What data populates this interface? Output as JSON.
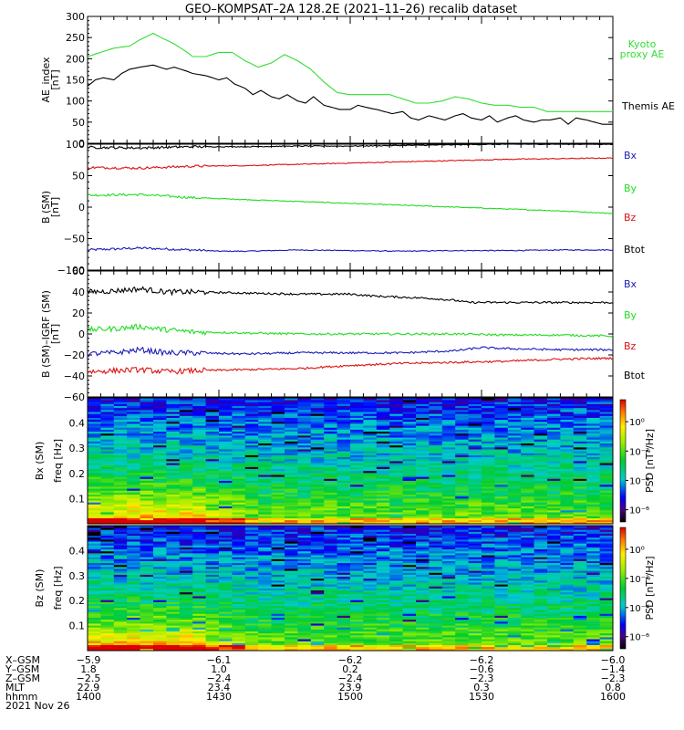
{
  "title": "GEO–KOMPSAT–2A 128.2E (2021–11–26) recalib dataset",
  "colors": {
    "black": "#000000",
    "green": "#22dd22",
    "red": "#dd1111",
    "blue": "#1a1ab8",
    "kyoto": "#33dd33"
  },
  "chart_data": [
    {
      "type": "line",
      "ylabel_lines": [
        "AE_index",
        "[nT]"
      ],
      "ylim": [
        0,
        300
      ],
      "yticks": [
        "0",
        "50",
        "100",
        "150",
        "200",
        "250",
        "300"
      ],
      "x_range": [
        1400,
        1600
      ],
      "series": [
        {
          "name": "Kyoto proxy AE",
          "label_lines": [
            "Kyoto",
            "proxy AE"
          ],
          "color": "#33dd33",
          "x": [
            1400,
            1405,
            1410,
            1416,
            1420,
            1425,
            1428,
            1433,
            1438,
            1440,
            1445,
            1450,
            1455,
            1460,
            1465,
            1470,
            1475,
            1480,
            1485,
            1490,
            1495,
            1500,
            1505,
            1510,
            1515,
            1520,
            1525,
            1530,
            1535,
            1540,
            1545,
            1550,
            1555,
            1560,
            1565,
            1570,
            1575,
            1580,
            1590,
            1600
          ],
          "y": [
            205,
            215,
            225,
            230,
            245,
            260,
            250,
            235,
            215,
            205,
            205,
            215,
            215,
            195,
            180,
            190,
            210,
            195,
            175,
            145,
            120,
            115,
            115,
            115,
            115,
            105,
            95,
            95,
            100,
            110,
            105,
            95,
            90,
            90,
            85,
            85,
            75,
            75,
            75,
            75
          ]
        },
        {
          "name": "Themis AE",
          "label_lines": [
            "Themis AE"
          ],
          "color": "#000000",
          "x": [
            1400,
            1403,
            1406,
            1410,
            1413,
            1416,
            1420,
            1425,
            1430,
            1433,
            1438,
            1440,
            1445,
            1450,
            1453,
            1456,
            1460,
            1463,
            1466,
            1470,
            1473,
            1476,
            1480,
            1483,
            1486,
            1490,
            1493,
            1496,
            1500,
            1503,
            1506,
            1510,
            1513,
            1516,
            1520,
            1523,
            1526,
            1530,
            1533,
            1536,
            1540,
            1543,
            1546,
            1550,
            1553,
            1556,
            1560,
            1563,
            1566,
            1570,
            1573,
            1576,
            1580,
            1583,
            1586,
            1590,
            1593,
            1596,
            1600
          ],
          "y": [
            135,
            150,
            155,
            150,
            165,
            175,
            180,
            185,
            175,
            180,
            170,
            165,
            160,
            150,
            155,
            140,
            130,
            115,
            125,
            110,
            105,
            115,
            100,
            95,
            110,
            90,
            85,
            80,
            80,
            90,
            85,
            80,
            75,
            70,
            75,
            60,
            55,
            65,
            60,
            55,
            65,
            70,
            60,
            55,
            65,
            50,
            60,
            65,
            55,
            50,
            55,
            55,
            60,
            45,
            60,
            55,
            50,
            45,
            45
          ]
        }
      ]
    },
    {
      "type": "line",
      "ylabel_lines": [
        "B (SM)",
        "[nT]"
      ],
      "ylim": [
        -100,
        100
      ],
      "yticks": [
        "−100",
        "−50",
        "0",
        "50",
        "100"
      ],
      "x_range": [
        1400,
        1600
      ],
      "series": [
        {
          "name": "Bx",
          "color": "#1a1ab8",
          "x": [
            1400,
            1420,
            1440,
            1450,
            1460,
            1480,
            1500,
            1520,
            1540,
            1560,
            1580,
            1600
          ],
          "y": [
            -68,
            -65,
            -68,
            -70,
            -70,
            -68,
            -69,
            -70,
            -69,
            -69,
            -68,
            -68
          ]
        },
        {
          "name": "By",
          "color": "#22dd22",
          "x": [
            1400,
            1420,
            1440,
            1460,
            1480,
            1500,
            1520,
            1540,
            1560,
            1580,
            1600
          ],
          "y": [
            19,
            20,
            15,
            12,
            9,
            6,
            3,
            0,
            -3,
            -6,
            -10
          ]
        },
        {
          "name": "Bz",
          "color": "#dd1111",
          "x": [
            1400,
            1420,
            1440,
            1460,
            1480,
            1500,
            1520,
            1540,
            1560,
            1580,
            1600
          ],
          "y": [
            63,
            62,
            65,
            66,
            68,
            70,
            72,
            74,
            76,
            77,
            78
          ]
        },
        {
          "name": "Btot",
          "color": "#000000",
          "x": [
            1400,
            1420,
            1440,
            1460,
            1480,
            1500,
            1520,
            1540,
            1560,
            1580,
            1600
          ],
          "y": [
            95,
            94,
            96,
            96,
            97,
            97,
            98,
            99,
            100,
            100,
            100
          ]
        }
      ],
      "legend_order": [
        "Bx",
        "By",
        "Bz",
        "Btot"
      ]
    },
    {
      "type": "line",
      "ylabel_lines": [
        "B (SM)–IGRF (SM)",
        "[nT]"
      ],
      "ylim": [
        -60,
        60
      ],
      "yticks": [
        "−60",
        "−40",
        "−20",
        "0",
        "20",
        "40",
        "60"
      ],
      "x_range": [
        1400,
        1600
      ],
      "series": [
        {
          "name": "Btot",
          "color": "#000000",
          "x": [
            1400,
            1410,
            1420,
            1430,
            1440,
            1460,
            1480,
            1500,
            1510,
            1520,
            1530,
            1540,
            1545,
            1560,
            1580,
            1600
          ],
          "y": [
            40,
            41,
            43,
            40,
            40,
            39,
            38,
            38,
            36,
            35,
            34,
            32,
            30,
            30,
            30,
            30
          ]
        },
        {
          "name": "By",
          "color": "#22dd22",
          "x": [
            1400,
            1410,
            1420,
            1430,
            1440,
            1460,
            1480,
            1500,
            1520,
            1540,
            1560,
            1580,
            1600
          ],
          "y": [
            4,
            5,
            7,
            4,
            2,
            1,
            0,
            0,
            0,
            0,
            -1,
            -1,
            -2
          ]
        },
        {
          "name": "Bx",
          "color": "#1a1ab8",
          "x": [
            1400,
            1410,
            1420,
            1430,
            1440,
            1460,
            1480,
            1500,
            1520,
            1530,
            1540,
            1550,
            1560,
            1580,
            1600
          ],
          "y": [
            -19,
            -18,
            -15,
            -18,
            -18,
            -19,
            -18,
            -18,
            -18,
            -17,
            -16,
            -13,
            -14,
            -15,
            -15
          ]
        },
        {
          "name": "Bz",
          "color": "#dd1111",
          "x": [
            1400,
            1410,
            1420,
            1430,
            1440,
            1460,
            1480,
            1500,
            1520,
            1540,
            1560,
            1580,
            1600
          ],
          "y": [
            -36,
            -35,
            -34,
            -36,
            -35,
            -34,
            -33,
            -30,
            -28,
            -27,
            -26,
            -24,
            -23
          ]
        }
      ],
      "legend_order": [
        "Bx",
        "By",
        "Bz",
        "Btot"
      ]
    },
    {
      "type": "heatmap",
      "ylabel_lines": [
        "Bx (SM)",
        "freq [Hz]"
      ],
      "ylim": [
        0,
        0.5
      ],
      "yticks": [
        "0.1",
        "0.2",
        "0.3",
        "0.4"
      ],
      "colorbar_label": "PSD [nT²/Hz]",
      "colorbar_ticks": [
        "10⁰",
        "10⁻²",
        "10⁻⁴",
        "10⁻⁶"
      ]
    },
    {
      "type": "heatmap",
      "ylabel_lines": [
        "Bz (SM)",
        "freq [Hz]"
      ],
      "ylim": [
        0,
        0.5
      ],
      "yticks": [
        "0.1",
        "0.2",
        "0.3",
        "0.4"
      ],
      "colorbar_label": "PSD [nT²/Hz]",
      "colorbar_ticks": [
        "10⁰",
        "10⁻²",
        "10⁻⁴",
        "10⁻⁶"
      ]
    }
  ],
  "footer": {
    "row_labels": [
      "X–GSM",
      "Y–GSM",
      "Z–GSM",
      "MLT",
      "hhmm",
      "2021 Nov 26"
    ],
    "columns": [
      [
        "−5.9",
        "1.8",
        "−2.5",
        "22.9",
        "1400"
      ],
      [
        "−6.1",
        "1.0",
        "−2.4",
        "23.4",
        "1430"
      ],
      [
        "−6.2",
        "0.2",
        "−2.4",
        "23.9",
        "1500"
      ],
      [
        "−6.2",
        "−0.6",
        "−2.3",
        "0.3",
        "1530"
      ],
      [
        "−6.0",
        "−1.4",
        "−2.3",
        "0.8",
        "1600"
      ]
    ]
  }
}
